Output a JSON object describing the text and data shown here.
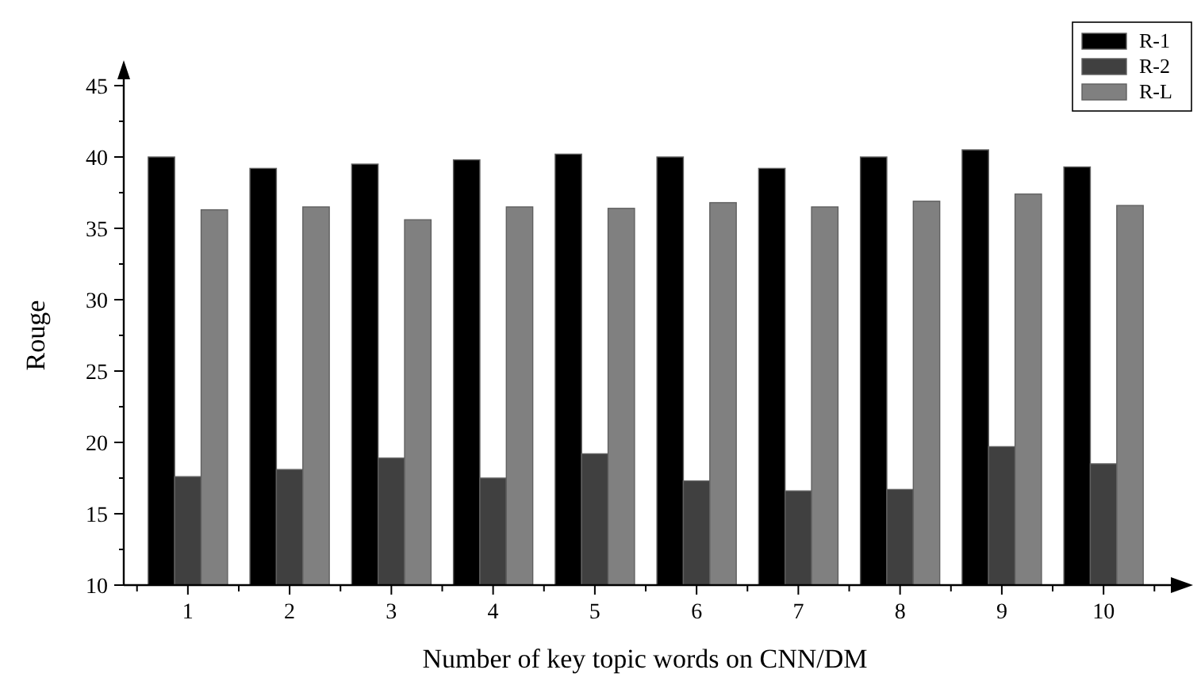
{
  "chart_data": {
    "type": "bar",
    "xlabel": "Number of key topic words on CNN/DM",
    "ylabel": "Rouge",
    "categories": [
      "1",
      "2",
      "3",
      "4",
      "5",
      "6",
      "7",
      "8",
      "9",
      "10"
    ],
    "series": [
      {
        "name": "R-1",
        "color": "#000000",
        "values": [
          40.0,
          39.2,
          39.5,
          39.8,
          40.2,
          40.0,
          39.2,
          40.0,
          40.5,
          39.3
        ]
      },
      {
        "name": "R-2",
        "color": "#404040",
        "values": [
          17.6,
          18.1,
          18.9,
          17.5,
          19.2,
          17.3,
          16.6,
          16.7,
          19.7,
          18.5
        ]
      },
      {
        "name": "R-L",
        "color": "#808080",
        "values": [
          36.3,
          36.5,
          35.6,
          36.5,
          36.4,
          36.8,
          36.5,
          36.9,
          37.4,
          36.6
        ]
      }
    ],
    "ylim": [
      10,
      45
    ],
    "yticks": [
      10,
      15,
      20,
      25,
      30,
      35,
      40,
      45
    ],
    "grid": false,
    "legend": "top right"
  }
}
